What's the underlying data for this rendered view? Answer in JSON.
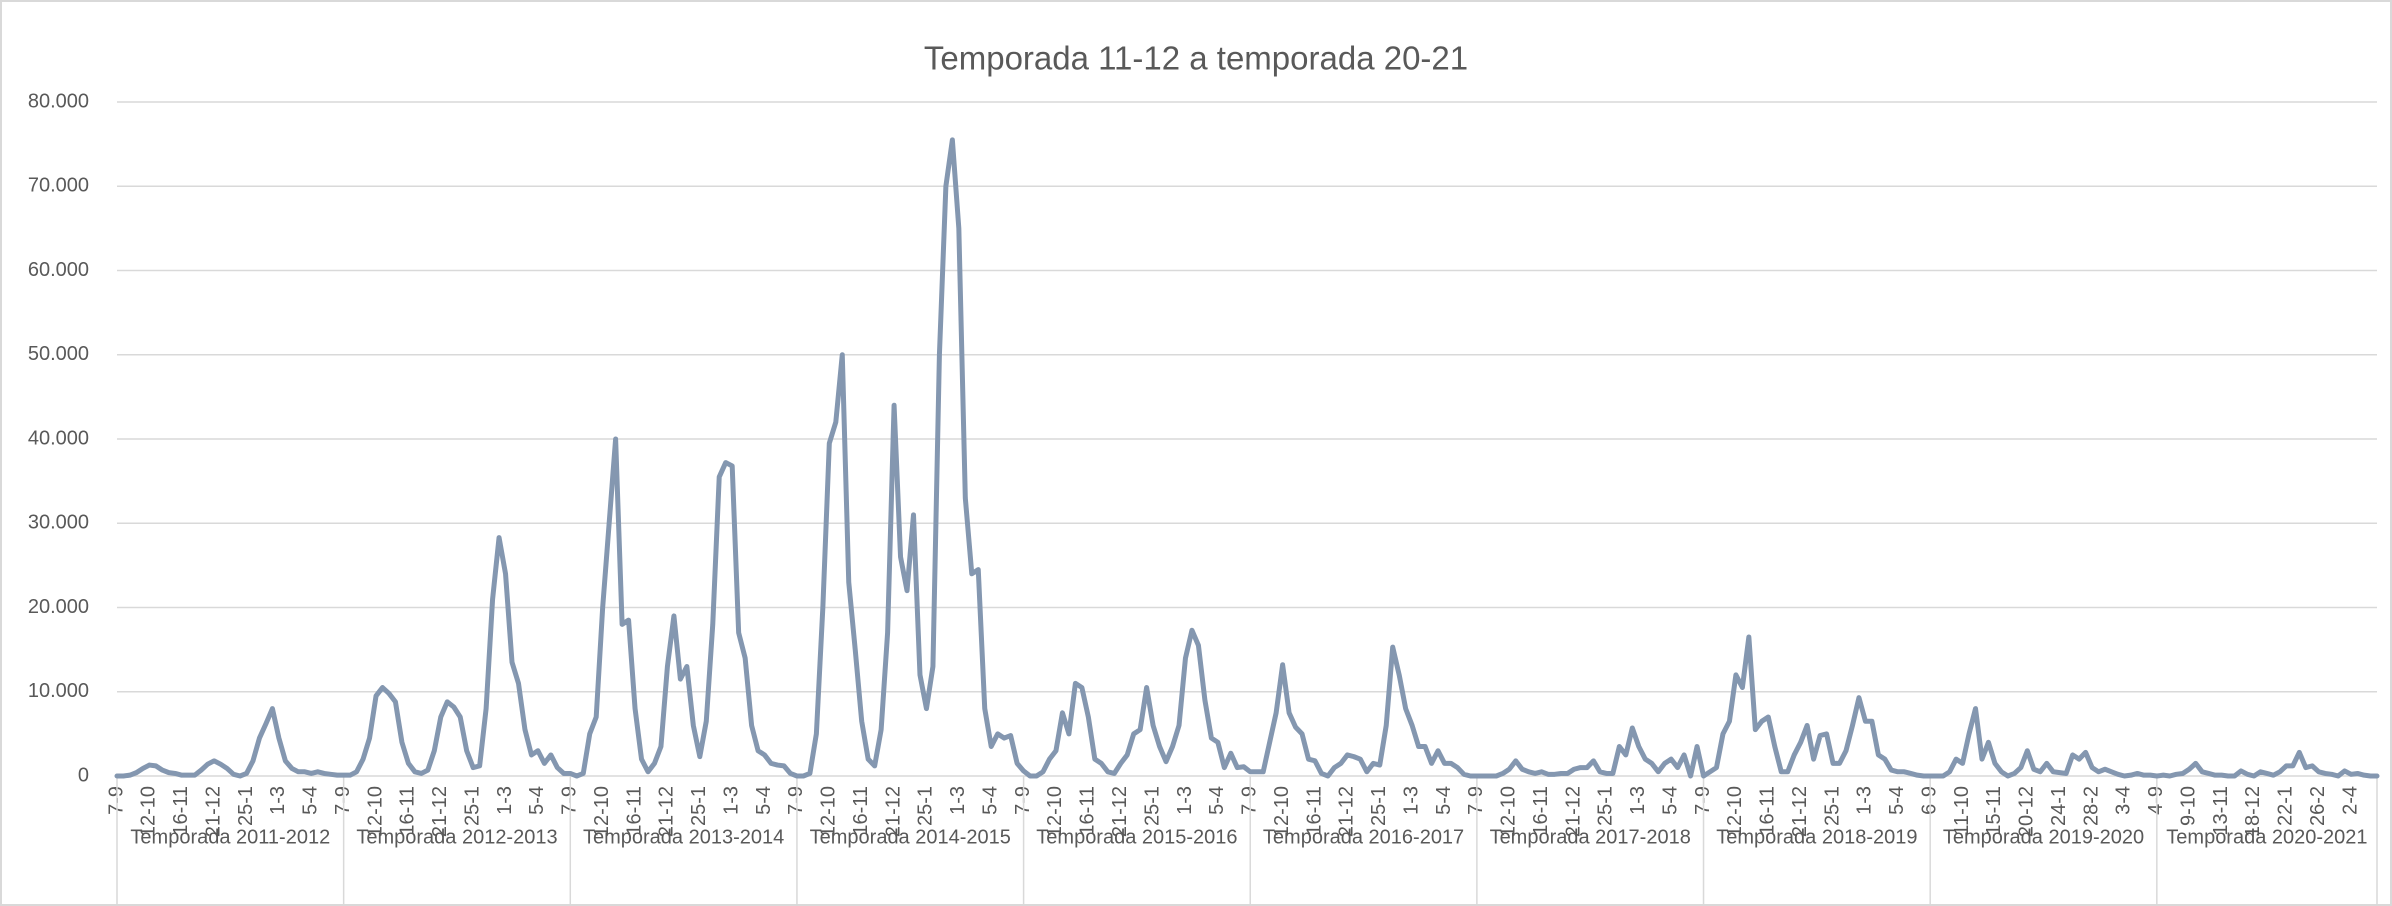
{
  "chart_data": {
    "type": "line",
    "title": "Temporada 11-12 a temporada 20-21",
    "category_groups": [
      "Temporada 2011-2012",
      "Temporada 2012-2013",
      "Temporada 2013-2014",
      "Temporada 2014-2015",
      "Temporada 2015-2016",
      "Temporada 2016-2017",
      "Temporada 2017-2018",
      "Temporada 2018-2019",
      "Temporada 2019-2020",
      "Temporada 2020-2021"
    ],
    "categories": [
      "7-9",
      null,
      null,
      null,
      null,
      "12-10",
      null,
      null,
      null,
      null,
      "16-11",
      null,
      null,
      null,
      null,
      "21-12",
      null,
      null,
      null,
      null,
      "25-1",
      null,
      null,
      null,
      null,
      "1-3",
      null,
      null,
      null,
      null,
      "5-4",
      null,
      null,
      null,
      null,
      "7-9",
      null,
      null,
      null,
      null,
      "12-10",
      null,
      null,
      null,
      null,
      "16-11",
      null,
      null,
      null,
      null,
      "21-12",
      null,
      null,
      null,
      null,
      "25-1",
      null,
      null,
      null,
      null,
      "1-3",
      null,
      null,
      null,
      null,
      "5-4",
      null,
      null,
      null,
      null,
      "7-9",
      null,
      null,
      null,
      null,
      "12-10",
      null,
      null,
      null,
      null,
      "16-11",
      null,
      null,
      null,
      null,
      "21-12",
      null,
      null,
      null,
      null,
      "25-1",
      null,
      null,
      null,
      null,
      "1-3",
      null,
      null,
      null,
      null,
      "5-4",
      null,
      null,
      null,
      null,
      "7-9",
      null,
      null,
      null,
      null,
      "12-10",
      null,
      null,
      null,
      null,
      "16-11",
      null,
      null,
      null,
      null,
      "21-12",
      null,
      null,
      null,
      null,
      "25-1",
      null,
      null,
      null,
      null,
      "1-3",
      null,
      null,
      null,
      null,
      "5-4",
      null,
      null,
      null,
      null,
      "7-9",
      null,
      null,
      null,
      null,
      "12-10",
      null,
      null,
      null,
      null,
      "16-11",
      null,
      null,
      null,
      null,
      "21-12",
      null,
      null,
      null,
      null,
      "25-1",
      null,
      null,
      null,
      null,
      "1-3",
      null,
      null,
      null,
      null,
      "5-4",
      null,
      null,
      null,
      null,
      "7-9",
      null,
      null,
      null,
      null,
      "12-10",
      null,
      null,
      null,
      null,
      "16-11",
      null,
      null,
      null,
      null,
      "21-12",
      null,
      null,
      null,
      null,
      "25-1",
      null,
      null,
      null,
      null,
      "1-3",
      null,
      null,
      null,
      null,
      "5-4",
      null,
      null,
      null,
      null,
      "7-9",
      null,
      null,
      null,
      null,
      "12-10",
      null,
      null,
      null,
      null,
      "16-11",
      null,
      null,
      null,
      null,
      "21-12",
      null,
      null,
      null,
      null,
      "25-1",
      null,
      null,
      null,
      null,
      "1-3",
      null,
      null,
      null,
      null,
      "5-4",
      null,
      null,
      null,
      null,
      "7-9",
      null,
      null,
      null,
      null,
      "12-10",
      null,
      null,
      null,
      null,
      "16-11",
      null,
      null,
      null,
      null,
      "21-12",
      null,
      null,
      null,
      null,
      "25-1",
      null,
      null,
      null,
      null,
      "1-3",
      null,
      null,
      null,
      null,
      "5-4",
      null,
      null,
      null,
      null,
      "6-9",
      null,
      null,
      null,
      null,
      "11-10",
      null,
      null,
      null,
      null,
      "15-11",
      null,
      null,
      null,
      null,
      "20-12",
      null,
      null,
      null,
      null,
      "24-1",
      null,
      null,
      null,
      null,
      "28-2",
      null,
      null,
      null,
      null,
      "3-4",
      null,
      null,
      null,
      null,
      "4-9",
      null,
      null,
      null,
      null,
      "9-10",
      null,
      null,
      null,
      null,
      "13-11",
      null,
      null,
      null,
      null,
      "18-12",
      null,
      null,
      null,
      null,
      "22-1",
      null,
      null,
      null,
      null,
      "26-2",
      null,
      null,
      null,
      null,
      "2-4",
      null,
      null,
      null,
      null
    ],
    "series": [
      {
        "color": "#8497b0",
        "values": [
          0,
          0,
          100,
          400,
          900,
          1300,
          1200,
          700,
          400,
          300,
          100,
          100,
          100,
          700,
          1400,
          1800,
          1400,
          900,
          200,
          0,
          300,
          1800,
          4500,
          6200,
          8000,
          4500,
          1800,
          900,
          500,
          500,
          300,
          500,
          300,
          200,
          100,
          100,
          100,
          500,
          2000,
          4500,
          9500,
          10500,
          9800,
          8800,
          4000,
          1500,
          500,
          300,
          700,
          3000,
          7000,
          8800,
          8200,
          7000,
          3000,
          1000,
          1200,
          8000,
          21000,
          28300,
          24000,
          13500,
          11000,
          5500,
          2500,
          3000,
          1500,
          2500,
          1000,
          300,
          300,
          0,
          300,
          5000,
          7000,
          20000,
          30000,
          40000,
          18000,
          18500,
          8000,
          2000,
          500,
          1500,
          3500,
          13000,
          19000,
          11500,
          13000,
          6000,
          2300,
          6500,
          18000,
          35500,
          37200,
          36800,
          17000,
          14000,
          6000,
          3000,
          2500,
          1500,
          1300,
          1200,
          300,
          0,
          0,
          300,
          5000,
          20000,
          39500,
          42000,
          50000,
          23000,
          15000,
          6500,
          2000,
          1200,
          5500,
          17000,
          44000,
          26000,
          22000,
          31000,
          12000,
          8000,
          13000,
          50000,
          70000,
          75500,
          65000,
          33000,
          24000,
          24500,
          8000,
          3500,
          5000,
          4500,
          4800,
          1500,
          600,
          0,
          0,
          500,
          2000,
          3000,
          7500,
          5000,
          11000,
          10500,
          7000,
          2000,
          1500,
          500,
          300,
          1500,
          2500,
          5000,
          5500,
          10500,
          6000,
          3500,
          1700,
          3500,
          6000,
          14000,
          17300,
          15500,
          9000,
          4500,
          4000,
          1000,
          2700,
          1000,
          1100,
          500,
          500,
          500,
          4000,
          7500,
          13200,
          7500,
          5800,
          5000,
          2000,
          1800,
          300,
          0,
          1000,
          1500,
          2500,
          2300,
          2000,
          500,
          1500,
          1300,
          6000,
          15300,
          12000,
          8000,
          6000,
          3500,
          3500,
          1500,
          3000,
          1500,
          1500,
          1000,
          200,
          0,
          0,
          0,
          0,
          0,
          300,
          800,
          1800,
          800,
          500,
          300,
          500,
          200,
          200,
          300,
          300,
          800,
          1000,
          1000,
          1800,
          500,
          300,
          300,
          3500,
          2500,
          5700,
          3500,
          2000,
          1500,
          500,
          1500,
          2000,
          1000,
          2500,
          0,
          3500,
          0,
          500,
          1000,
          5000,
          6500,
          12000,
          10500,
          16500,
          5500,
          6500,
          7000,
          3500,
          500,
          500,
          2500,
          4000,
          6000,
          2000,
          4800,
          5000,
          1500,
          1500,
          3000,
          6000,
          9300,
          6500,
          6500,
          2500,
          2000,
          700,
          500,
          500,
          300,
          100,
          0,
          0,
          0,
          0,
          500,
          2000,
          1500,
          5000,
          8000,
          2000,
          4000,
          1500,
          500,
          0,
          300,
          1000,
          3000,
          800,
          500,
          1500,
          500,
          400,
          300,
          2500,
          2000,
          2800,
          1000,
          500,
          800,
          500,
          200,
          0,
          100,
          300,
          100,
          100,
          0,
          100,
          0,
          200,
          300,
          800,
          1500,
          500,
          300,
          100,
          100,
          0,
          0,
          600,
          200,
          0,
          500,
          300,
          100,
          500,
          1200,
          1200,
          2800,
          1000,
          1200,
          500,
          300,
          200,
          0,
          600,
          200,
          300,
          100,
          0,
          0
        ]
      }
    ],
    "ylim": [
      0,
      80000
    ],
    "yticks": [
      0,
      {
        "value": 10000,
        "label": "10.000"
      },
      {
        "value": 20000,
        "label": "20.000"
      },
      {
        "value": 30000,
        "label": "30.000"
      },
      {
        "value": 40000,
        "label": "40.000"
      },
      {
        "value": 50000,
        "label": "50.000"
      },
      {
        "value": 60000,
        "label": "60.000"
      },
      {
        "value": 70000,
        "label": "70.000"
      },
      {
        "value": 80000,
        "label": "80.000"
      }
    ],
    "grid": true
  }
}
